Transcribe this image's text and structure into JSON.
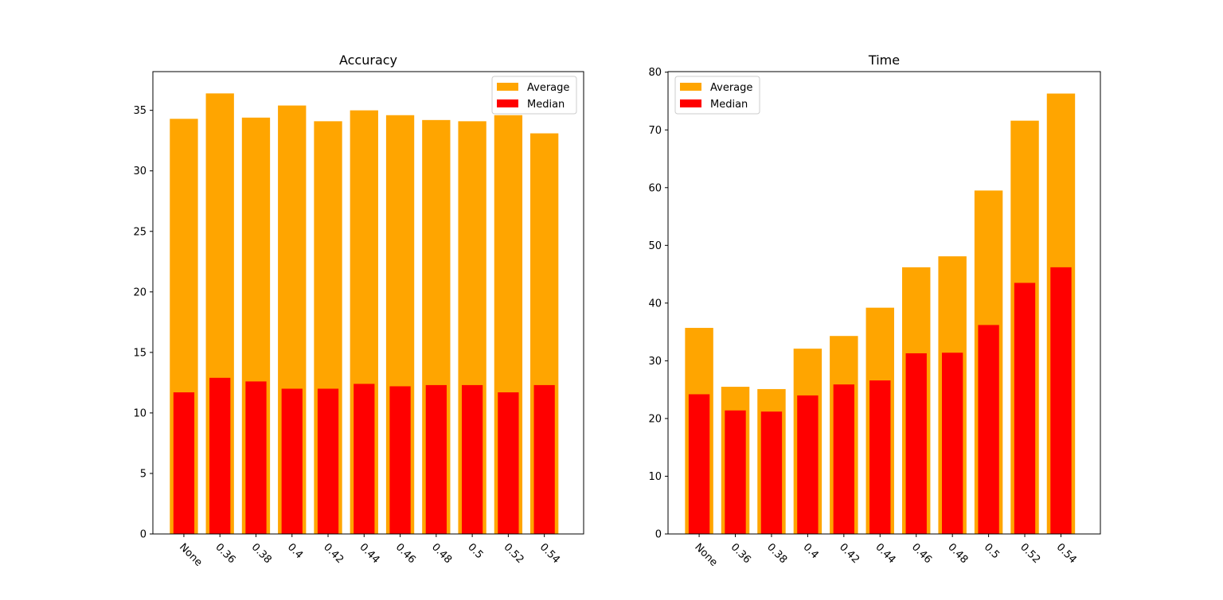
{
  "chart_data": [
    {
      "type": "bar",
      "title": "Accuracy",
      "xlabel": "",
      "ylabel": "",
      "categories": [
        "None",
        "0.36",
        "0.38",
        "0.4",
        "0.42",
        "0.44",
        "0.46",
        "0.48",
        "0.5",
        "0.52",
        "0.54"
      ],
      "series": [
        {
          "name": "Average",
          "color": "#FFA500",
          "values": [
            34.3,
            36.4,
            34.4,
            35.4,
            34.1,
            35.0,
            34.6,
            34.2,
            34.1,
            34.6,
            33.1
          ]
        },
        {
          "name": "Median",
          "color": "#FF0000",
          "values": [
            11.7,
            12.9,
            12.6,
            12.0,
            12.0,
            12.4,
            12.2,
            12.3,
            12.3,
            11.7,
            12.3
          ]
        }
      ],
      "ylim": [
        0,
        38.2
      ],
      "yticks": [
        0,
        5,
        10,
        15,
        20,
        25,
        30,
        35
      ],
      "legend_position": "top-right",
      "grid": false
    },
    {
      "type": "bar",
      "title": "Time",
      "xlabel": "",
      "ylabel": "",
      "categories": [
        "None",
        "0.36",
        "0.38",
        "0.4",
        "0.42",
        "0.44",
        "0.46",
        "0.48",
        "0.5",
        "0.52",
        "0.54"
      ],
      "series": [
        {
          "name": "Average",
          "color": "#FFA500",
          "values": [
            35.7,
            25.5,
            25.1,
            32.1,
            34.3,
            39.2,
            46.2,
            48.1,
            59.5,
            71.6,
            76.3
          ]
        },
        {
          "name": "Median",
          "color": "#FF0000",
          "values": [
            24.2,
            21.4,
            21.2,
            24.0,
            25.9,
            26.6,
            31.3,
            31.4,
            36.2,
            43.5,
            46.2
          ]
        }
      ],
      "ylim": [
        0,
        80.1
      ],
      "yticks": [
        0,
        10,
        20,
        30,
        40,
        50,
        60,
        70,
        80
      ],
      "legend_position": "top-left",
      "grid": false
    }
  ]
}
